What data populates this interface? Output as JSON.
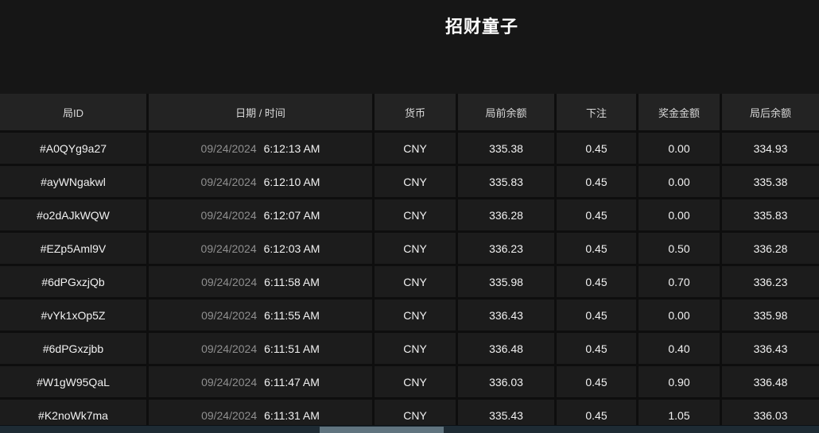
{
  "page": {
    "title": "招财童子"
  },
  "table": {
    "columns": [
      {
        "key": "id",
        "label": "局ID"
      },
      {
        "key": "datetime",
        "label": "日期 / 时间"
      },
      {
        "key": "currency",
        "label": "货币"
      },
      {
        "key": "balance_before",
        "label": "局前余额"
      },
      {
        "key": "bet",
        "label": "下注"
      },
      {
        "key": "prize",
        "label": "奖金金额"
      },
      {
        "key": "balance_after",
        "label": "局后余额"
      }
    ],
    "rows": [
      {
        "id": "#A0QYg9a27",
        "date": "09/24/2024",
        "time": "6:12:13 AM",
        "currency": "CNY",
        "balance_before": "335.38",
        "bet": "0.45",
        "prize": "0.00",
        "balance_after": "334.93"
      },
      {
        "id": "#ayWNgakwl",
        "date": "09/24/2024",
        "time": "6:12:10 AM",
        "currency": "CNY",
        "balance_before": "335.83",
        "bet": "0.45",
        "prize": "0.00",
        "balance_after": "335.38"
      },
      {
        "id": "#o2dAJkWQW",
        "date": "09/24/2024",
        "time": "6:12:07 AM",
        "currency": "CNY",
        "balance_before": "336.28",
        "bet": "0.45",
        "prize": "0.00",
        "balance_after": "335.83"
      },
      {
        "id": "#EZp5Aml9V",
        "date": "09/24/2024",
        "time": "6:12:03 AM",
        "currency": "CNY",
        "balance_before": "336.23",
        "bet": "0.45",
        "prize": "0.50",
        "balance_after": "336.28"
      },
      {
        "id": "#6dPGxzjQb",
        "date": "09/24/2024",
        "time": "6:11:58 AM",
        "currency": "CNY",
        "balance_before": "335.98",
        "bet": "0.45",
        "prize": "0.70",
        "balance_after": "336.23"
      },
      {
        "id": "#vYk1xOp5Z",
        "date": "09/24/2024",
        "time": "6:11:55 AM",
        "currency": "CNY",
        "balance_before": "336.43",
        "bet": "0.45",
        "prize": "0.00",
        "balance_after": "335.98"
      },
      {
        "id": "#6dPGxzjbb",
        "date": "09/24/2024",
        "time": "6:11:51 AM",
        "currency": "CNY",
        "balance_before": "336.48",
        "bet": "0.45",
        "prize": "0.40",
        "balance_after": "336.43"
      },
      {
        "id": "#W1gW95QaL",
        "date": "09/24/2024",
        "time": "6:11:47 AM",
        "currency": "CNY",
        "balance_before": "336.03",
        "bet": "0.45",
        "prize": "0.90",
        "balance_after": "336.48"
      },
      {
        "id": "#K2noWk7ma",
        "date": "09/24/2024",
        "time": "6:11:31 AM",
        "currency": "CNY",
        "balance_before": "335.43",
        "bet": "0.45",
        "prize": "1.05",
        "balance_after": "336.03"
      }
    ]
  }
}
